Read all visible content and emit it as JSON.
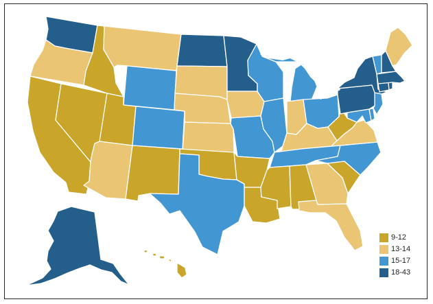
{
  "map": {
    "colors": {
      "c1": "#c9a52a",
      "c2": "#eac574",
      "c3": "#4297d2",
      "c4": "#245f8c"
    },
    "states": [
      {
        "id": "WA",
        "bin": "c4"
      },
      {
        "id": "OR",
        "bin": "c2"
      },
      {
        "id": "CA",
        "bin": "c1"
      },
      {
        "id": "NV",
        "bin": "c1"
      },
      {
        "id": "ID",
        "bin": "c1"
      },
      {
        "id": "MT",
        "bin": "c2"
      },
      {
        "id": "WY",
        "bin": "c3"
      },
      {
        "id": "UT",
        "bin": "c1"
      },
      {
        "id": "CO",
        "bin": "c3"
      },
      {
        "id": "AZ",
        "bin": "c2"
      },
      {
        "id": "NM",
        "bin": "c1"
      },
      {
        "id": "ND",
        "bin": "c4"
      },
      {
        "id": "SD",
        "bin": "c2"
      },
      {
        "id": "NE",
        "bin": "c2"
      },
      {
        "id": "KS",
        "bin": "c2"
      },
      {
        "id": "OK",
        "bin": "c1"
      },
      {
        "id": "TX",
        "bin": "c3"
      },
      {
        "id": "MN",
        "bin": "c4"
      },
      {
        "id": "IA",
        "bin": "c2"
      },
      {
        "id": "MO",
        "bin": "c3"
      },
      {
        "id": "AR",
        "bin": "c1"
      },
      {
        "id": "LA",
        "bin": "c1"
      },
      {
        "id": "WI",
        "bin": "c3"
      },
      {
        "id": "IL",
        "bin": "c3"
      },
      {
        "id": "MI",
        "bin": "c3"
      },
      {
        "id": "IN",
        "bin": "c2"
      },
      {
        "id": "OH",
        "bin": "c3"
      },
      {
        "id": "KY",
        "bin": "c2"
      },
      {
        "id": "TN",
        "bin": "c3"
      },
      {
        "id": "MS",
        "bin": "c1"
      },
      {
        "id": "AL",
        "bin": "c1"
      },
      {
        "id": "GA",
        "bin": "c2"
      },
      {
        "id": "FL",
        "bin": "c2"
      },
      {
        "id": "SC",
        "bin": "c1"
      },
      {
        "id": "NC",
        "bin": "c3"
      },
      {
        "id": "VA",
        "bin": "c2"
      },
      {
        "id": "WV",
        "bin": "c1"
      },
      {
        "id": "MD",
        "bin": "c3"
      },
      {
        "id": "DE",
        "bin": "c3"
      },
      {
        "id": "PA",
        "bin": "c4"
      },
      {
        "id": "NJ",
        "bin": "c3"
      },
      {
        "id": "NY",
        "bin": "c4"
      },
      {
        "id": "CT",
        "bin": "c4"
      },
      {
        "id": "RI",
        "bin": "c4"
      },
      {
        "id": "MA",
        "bin": "c4"
      },
      {
        "id": "VT",
        "bin": "c3"
      },
      {
        "id": "NH",
        "bin": "c4"
      },
      {
        "id": "ME",
        "bin": "c2"
      },
      {
        "id": "AK",
        "bin": "c4"
      },
      {
        "id": "HI",
        "bin": "c1"
      }
    ]
  },
  "legend": {
    "position": "bottom-right",
    "items": [
      {
        "label": "9-12",
        "color": "#c9a52a"
      },
      {
        "label": "13-14",
        "color": "#eac574"
      },
      {
        "label": "15-17",
        "color": "#4297d2"
      },
      {
        "label": "18-43",
        "color": "#245f8c"
      }
    ]
  }
}
